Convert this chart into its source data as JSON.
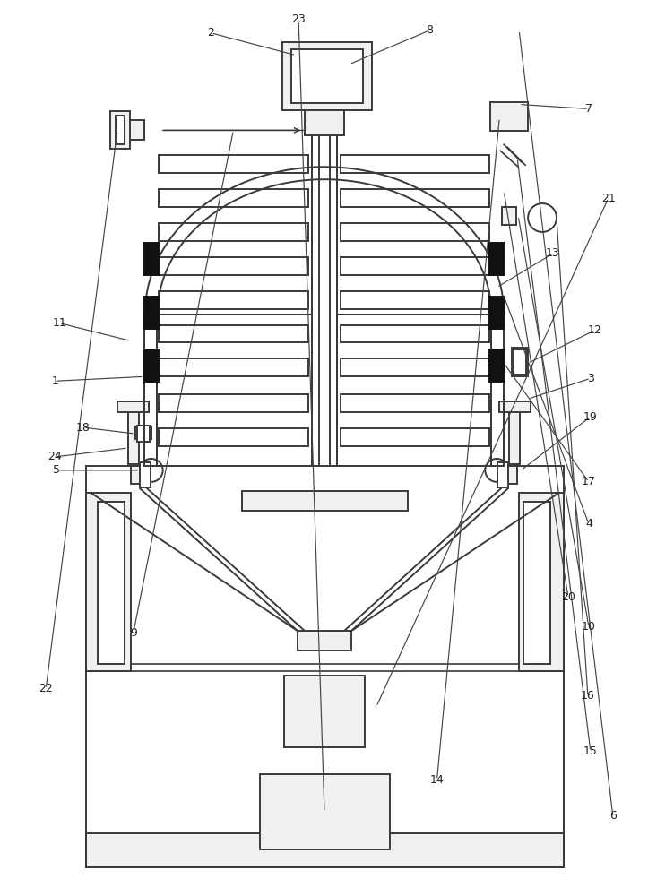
{
  "bg_color": "#ffffff",
  "line_color": "#3a3a3a",
  "lw": 1.4,
  "black_fill": "#111111",
  "gray_fill": "#f0f0f0"
}
